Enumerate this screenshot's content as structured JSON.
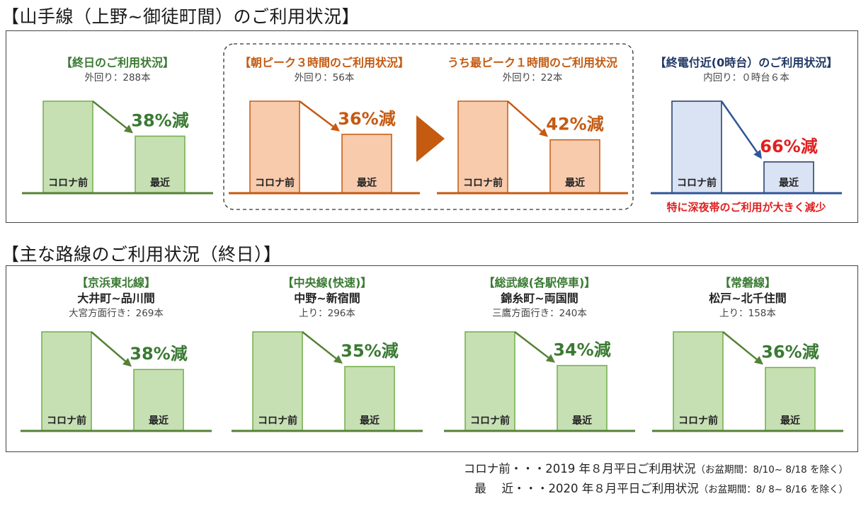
{
  "section1": {
    "title": "【山手線（上野~御徒町間）のご利用状況】"
  },
  "section2": {
    "title": "【主な路線のご利用状況（終日）】"
  },
  "colors": {
    "green": {
      "fill": "#c6e0b4",
      "stroke": "#70ad47",
      "text": "#3a7a33",
      "accent": "#548235"
    },
    "orange": {
      "fill": "#f8cbad",
      "stroke": "#c55a11",
      "text": "#c55a11",
      "accent": "#c55a11"
    },
    "navy": {
      "fill": "#dae3f3",
      "stroke": "#203864",
      "text": "#203864",
      "accent": "#2f5597"
    },
    "red_note": "#e02020"
  },
  "chart_data": [
    {
      "type": "bar",
      "title": "【終日のご利用状況】",
      "subtitle": "外回り：288本",
      "categories": [
        "コロナ前",
        "最近"
      ],
      "values": [
        100,
        62
      ],
      "change_label": "38%減",
      "theme": "green"
    },
    {
      "type": "bar",
      "title": "【朝ピーク３時間のご利用状況】",
      "subtitle": "外回り：56本",
      "categories": [
        "コロナ前",
        "最近"
      ],
      "values": [
        100,
        64
      ],
      "change_label": "36%減",
      "theme": "orange"
    },
    {
      "type": "bar",
      "title": "うち最ピーク１時間のご利用状況",
      "subtitle": "外回り：22本",
      "categories": [
        "コロナ前",
        "最近"
      ],
      "values": [
        100,
        58
      ],
      "change_label": "42%減",
      "theme": "orange"
    },
    {
      "type": "bar",
      "title": "【終電付近(0時台）のご利用状況】",
      "subtitle": "内回り：０時台６本",
      "categories": [
        "コロナ前",
        "最近"
      ],
      "values": [
        100,
        34
      ],
      "change_label": "66%減",
      "theme": "navy",
      "change_color": "#e02020",
      "note": "特に深夜帯のご利用が大きく減少"
    },
    {
      "type": "bar",
      "title": "【京浜東北線】",
      "title2": "大井町~品川間",
      "subtitle": "大宮方面行き：269本",
      "categories": [
        "コロナ前",
        "最近"
      ],
      "values": [
        100,
        62
      ],
      "change_label": "38%減",
      "theme": "green"
    },
    {
      "type": "bar",
      "title": "【中央線(快速)】",
      "title2": "中野~新宿間",
      "subtitle": "上り：296本",
      "categories": [
        "コロナ前",
        "最近"
      ],
      "values": [
        100,
        65
      ],
      "change_label": "35%減",
      "theme": "green"
    },
    {
      "type": "bar",
      "title": "【総武線(各駅停車)】",
      "title2": "錦糸町~両国間",
      "subtitle": "三鷹方面行き：240本",
      "categories": [
        "コロナ前",
        "最近"
      ],
      "values": [
        100,
        66
      ],
      "change_label": "34%減",
      "theme": "green"
    },
    {
      "type": "bar",
      "title": "【常磐線】",
      "title2": "松戸~北千住間",
      "subtitle": "上り：158本",
      "categories": [
        "コロナ前",
        "最近"
      ],
      "values": [
        100,
        64
      ],
      "change_label": "36%減",
      "theme": "green"
    }
  ],
  "footnotes": [
    {
      "label": "コロナ前・・・2019 年８月平日ご利用状況",
      "detail": "（お盆期間：8/10~ 8/18 を除く）"
    },
    {
      "label": "最　 近・・・2020 年８月平日ご利用状況",
      "detail": "（お盆期間：8/ 8~ 8/16 を除く）"
    }
  ]
}
